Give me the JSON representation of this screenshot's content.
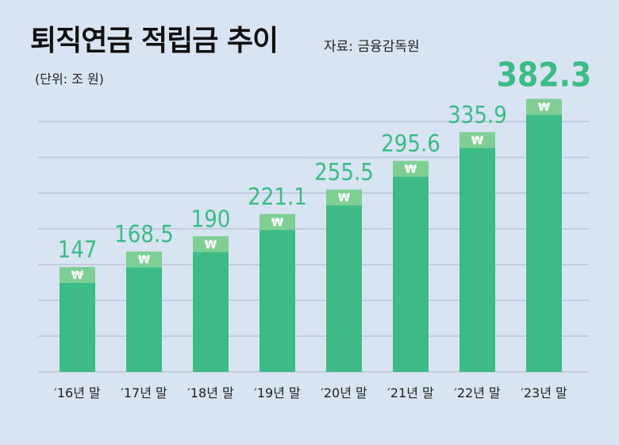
{
  "chart_data": {
    "type": "bar",
    "title": "퇴직연금 적립금 추이",
    "source": "자료: 금융감독원",
    "unit": "(단위: 조 원)",
    "categories": [
      "′16년 말",
      "′17년 말",
      "′18년 말",
      "′19년 말",
      "′20년 말",
      "′21년 말",
      "′22년 말",
      "′23년 말"
    ],
    "value_labels": [
      "147",
      "168.5",
      "190",
      "221.1",
      "255.5",
      "295.6",
      "335.9",
      "382.3"
    ],
    "values": [
      147,
      168.5,
      190,
      221.1,
      255.5,
      295.6,
      335.9,
      382.3
    ],
    "ylim": [
      0,
      400
    ],
    "grid": true,
    "colors": {
      "bar": "#3dbb86",
      "bar_cap": "#7fcf94",
      "label": "#3dbb86",
      "grid": "#b3c1d6",
      "background": "#d9e4f2"
    },
    "icon": "won-sign-icon",
    "icon_glyph": "₩"
  }
}
